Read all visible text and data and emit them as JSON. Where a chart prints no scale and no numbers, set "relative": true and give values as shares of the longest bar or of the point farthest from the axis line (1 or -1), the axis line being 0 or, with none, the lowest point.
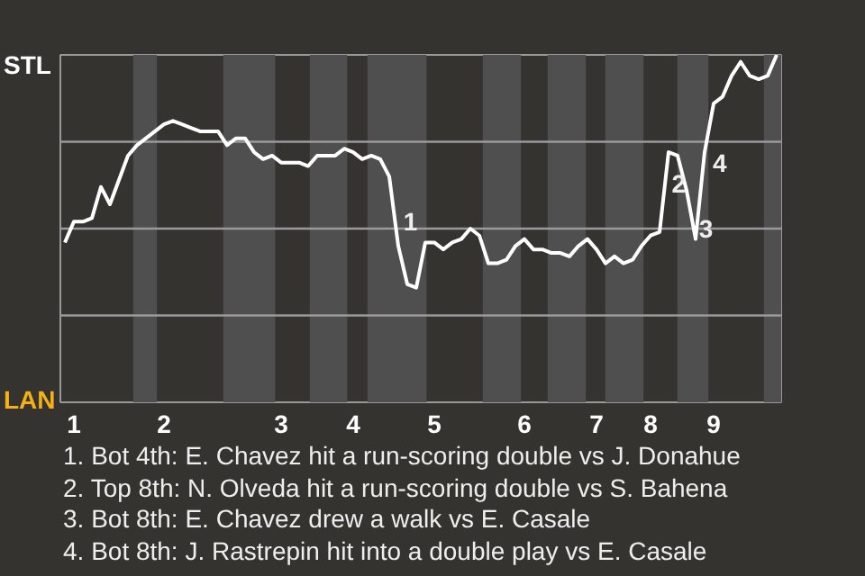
{
  "chart_data": {
    "type": "line",
    "relative": true,
    "categories": [
      null,
      "1",
      null,
      null,
      null,
      null,
      null,
      null,
      null,
      null,
      null,
      "2",
      null,
      null,
      null,
      null,
      null,
      null,
      null,
      null,
      null,
      null,
      null,
      null,
      "3",
      null,
      null,
      null,
      null,
      null,
      null,
      null,
      "4",
      null,
      null,
      null,
      null,
      null,
      null,
      null,
      null,
      "5",
      null,
      null,
      null,
      null,
      null,
      null,
      null,
      null,
      null,
      "6",
      null,
      null,
      null,
      null,
      null,
      null,
      null,
      "7",
      null,
      null,
      null,
      null,
      null,
      "8",
      null,
      null,
      null,
      null,
      null,
      null,
      "9",
      null,
      null,
      null,
      null,
      null,
      null,
      null
    ],
    "series": [
      {
        "color": "#ffffff",
        "values": [
          0.46,
          0.52,
          0.52,
          0.53,
          0.62,
          0.57,
          0.64,
          0.71,
          0.74,
          0.76,
          0.78,
          0.8,
          0.81,
          0.8,
          0.79,
          0.78,
          0.78,
          0.78,
          0.74,
          0.76,
          0.76,
          0.72,
          0.7,
          0.71,
          0.69,
          0.69,
          0.69,
          0.68,
          0.71,
          0.71,
          0.71,
          0.73,
          0.72,
          0.7,
          0.71,
          0.7,
          0.65,
          0.45,
          0.34,
          0.33,
          0.46,
          0.46,
          0.44,
          0.46,
          0.47,
          0.5,
          0.48,
          0.4,
          0.4,
          0.41,
          0.45,
          0.47,
          0.44,
          0.44,
          0.43,
          0.43,
          0.42,
          0.45,
          0.47,
          0.44,
          0.4,
          0.42,
          0.4,
          0.41,
          0.45,
          0.48,
          0.49,
          0.72,
          0.71,
          0.61,
          0.47,
          0.72,
          0.86,
          0.88,
          0.94,
          0.98,
          0.94,
          0.93,
          0.94,
          1.0
        ]
      }
    ],
    "ref_lines": [
      {
        "axis": "y",
        "value": 0.25,
        "color": "#9a9a9a"
      },
      {
        "axis": "y",
        "value": 0.5,
        "color": "#9a9a9a"
      },
      {
        "axis": "y",
        "value": 0.75,
        "color": "#9a9a9a"
      }
    ],
    "annotations": [
      "STL",
      "LAN",
      "1",
      "2",
      "3",
      "4",
      "1. Bot 4th: E. Chavez hit a run-scoring double vs J. Donahue",
      "2. Top 8th: N. Olveda hit a run-scoring double vs S. Bahena",
      "3. Bot 8th: E. Chavez drew a walk vs E. Casale",
      "4. Bot 8th: J. Rastrepin hit into a double play vs E. Casale"
    ]
  }
}
